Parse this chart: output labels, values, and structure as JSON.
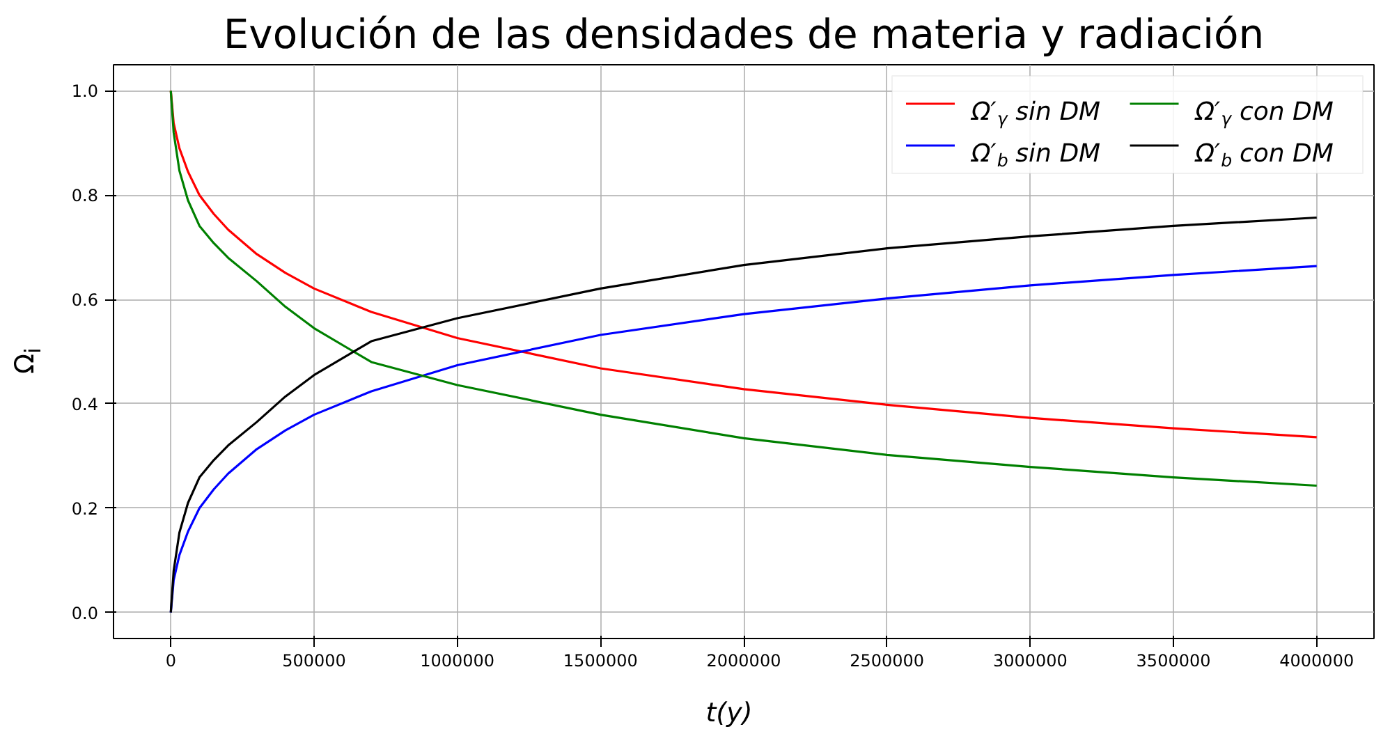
{
  "chart_data": {
    "type": "line",
    "title": "Evolución de las densidades de materia y radiación",
    "xlabel": "t(y)",
    "ylabel": "Ω$_{i}$",
    "x": [
      0,
      10000,
      30000,
      60000,
      100000,
      150000,
      200000,
      300000,
      400000,
      500000,
      700000,
      1000000,
      1500000,
      2000000,
      2500000,
      3000000,
      3500000,
      4000000
    ],
    "series": [
      {
        "name": "Ω′$_{γ}$ sin DM",
        "color": "#ff0000",
        "values": [
          1.0,
          0.938,
          0.89,
          0.845,
          0.8,
          0.764,
          0.734,
          0.687,
          0.651,
          0.621,
          0.576,
          0.526,
          0.468,
          0.428,
          0.398,
          0.373,
          0.353,
          0.336
        ]
      },
      {
        "name": "Ω′$_{b}$ sin DM",
        "color": "#0000ff",
        "values": [
          0.0,
          0.062,
          0.11,
          0.155,
          0.2,
          0.236,
          0.266,
          0.313,
          0.349,
          0.379,
          0.424,
          0.474,
          0.532,
          0.572,
          0.602,
          0.627,
          0.647,
          0.664
        ]
      },
      {
        "name": "Ω′$_{γ}$ con DM",
        "color": "#008000",
        "values": [
          1.0,
          0.92,
          0.847,
          0.79,
          0.741,
          0.708,
          0.68,
          0.635,
          0.586,
          0.545,
          0.48,
          0.436,
          0.379,
          0.334,
          0.302,
          0.279,
          0.259,
          0.243
        ]
      },
      {
        "name": "Ω′$_{b}$ con DM",
        "color": "#000000",
        "values": [
          0.0,
          0.08,
          0.153,
          0.21,
          0.259,
          0.292,
          0.32,
          0.365,
          0.414,
          0.455,
          0.52,
          0.564,
          0.621,
          0.666,
          0.698,
          0.721,
          0.741,
          0.757
        ]
      }
    ],
    "xlim": [
      -200000,
      4200000
    ],
    "ylim": [
      -0.05,
      1.05
    ],
    "xticks": [
      0,
      500000,
      1000000,
      1500000,
      2000000,
      2500000,
      3000000,
      3500000,
      4000000
    ],
    "yticks": [
      {
        "value": 0,
        "label": "0.0"
      },
      {
        "value": 0.2,
        "label": "0.2"
      },
      {
        "value": 0.4,
        "label": "0.4"
      },
      {
        "value": 0.6,
        "label": "0.6"
      },
      {
        "value": 0.8,
        "label": "0.8"
      },
      {
        "value": 1.0,
        "label": "1.0"
      }
    ],
    "grid": true,
    "legend": "top right",
    "line_style": "solid"
  }
}
